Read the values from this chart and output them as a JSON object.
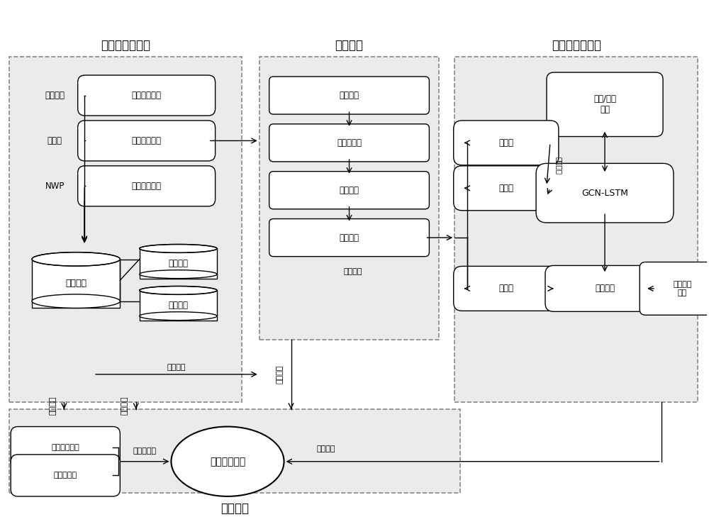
{
  "bg_color": "#ffffff",
  "region_bg": "#e8e8e8",
  "region_edge": "#999999",
  "box_bg": "#ffffff",
  "box_edge": "#000000",
  "section1_title": "数据获取和存储",
  "section2_title": "数据处理",
  "section3_title": "模型训练和验证",
  "section4_title": "实时预测",
  "proc_boxes": [
    "数据整合",
    "异常值处理",
    "特征构造",
    "生成样本"
  ],
  "data_sources": [
    "大气监测数据",
    "历史气象数据",
    "气象预报数据"
  ],
  "data_labels": [
    "大气站点",
    "气象站",
    "NWP"
  ],
  "storage_labels": [
    "历史存档",
    "新增数据"
  ],
  "train_labels": [
    "训练集",
    "验证集",
    "测试集"
  ],
  "model_label": "GCN-LSTM",
  "build_label": "构建/修改\n模型",
  "best_label": "最优模型",
  "acc_label": "精度评价\n结果",
  "storage_main": "数据存储",
  "atm_service": "大气预测服务",
  "pred_boxes": [
    "站点预测曲线",
    "区域预测图"
  ],
  "labels_rotated": [
    "数据入库",
    "人工录入",
    "模型更新"
  ],
  "label_zengji": "增量训练",
  "label_zhufen": "样本划分",
  "label_moxing": "模型部署",
  "label_hourly": "逐小时预测",
  "label_moxunlian": "模型训练"
}
